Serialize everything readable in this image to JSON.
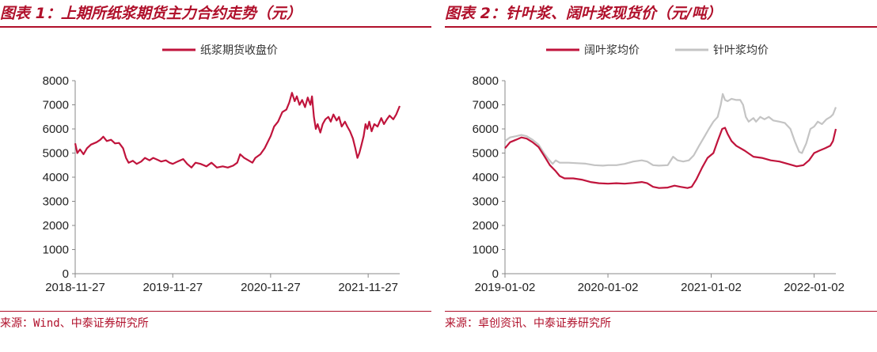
{
  "left": {
    "title": "图表 1：上期所纸浆期货主力合约走势（元）",
    "source": "来源：Wind、中泰证券研究所"
  },
  "right": {
    "title": "图表 2：针叶浆、阔叶浆现货价（元/吨）",
    "source": "来源：卓创资讯、中泰证券研究所"
  },
  "colors": {
    "accent": "#b0102b",
    "red_series": "#c0143c",
    "gray_series": "#c4c4c4"
  },
  "chart_data": [
    {
      "type": "line",
      "title": "",
      "xlabel": "",
      "ylabel": "",
      "ylim": [
        0,
        8000
      ],
      "yticks": [
        "0",
        "1000",
        "2000",
        "3000",
        "4000",
        "5000",
        "6000",
        "7000",
        "8000"
      ],
      "xticks": [
        "2018-11-27",
        "2019-11-27",
        "2020-11-27",
        "2021-11-27"
      ],
      "xrange": [
        "2018-11-27",
        "2022-03-25"
      ],
      "grid": false,
      "legend": "top-center",
      "series": [
        {
          "name": "纸浆期货收盘价",
          "color": "#c0143c",
          "points": [
            [
              "2018-11-27",
              5400
            ],
            [
              "2018-12-05",
              5000
            ],
            [
              "2018-12-15",
              5150
            ],
            [
              "2018-12-28",
              4950
            ],
            [
              "2019-01-10",
              5200
            ],
            [
              "2019-01-25",
              5350
            ],
            [
              "2019-02-15",
              5450
            ],
            [
              "2019-03-01",
              5550
            ],
            [
              "2019-03-12",
              5680
            ],
            [
              "2019-03-25",
              5500
            ],
            [
              "2019-04-10",
              5550
            ],
            [
              "2019-04-25",
              5400
            ],
            [
              "2019-05-10",
              5420
            ],
            [
              "2019-05-25",
              5200
            ],
            [
              "2019-06-05",
              4800
            ],
            [
              "2019-06-15",
              4600
            ],
            [
              "2019-07-01",
              4680
            ],
            [
              "2019-07-15",
              4550
            ],
            [
              "2019-08-01",
              4650
            ],
            [
              "2019-08-15",
              4800
            ],
            [
              "2019-09-01",
              4700
            ],
            [
              "2019-09-15",
              4800
            ],
            [
              "2019-10-01",
              4720
            ],
            [
              "2019-10-15",
              4650
            ],
            [
              "2019-11-01",
              4700
            ],
            [
              "2019-11-15",
              4600
            ],
            [
              "2019-11-27",
              4550
            ],
            [
              "2019-12-15",
              4650
            ],
            [
              "2020-01-05",
              4750
            ],
            [
              "2020-01-20",
              4550
            ],
            [
              "2020-02-05",
              4400
            ],
            [
              "2020-02-20",
              4600
            ],
            [
              "2020-03-10",
              4550
            ],
            [
              "2020-04-01",
              4450
            ],
            [
              "2020-04-20",
              4600
            ],
            [
              "2020-05-10",
              4400
            ],
            [
              "2020-06-01",
              4450
            ],
            [
              "2020-06-20",
              4400
            ],
            [
              "2020-07-10",
              4480
            ],
            [
              "2020-07-25",
              4600
            ],
            [
              "2020-08-05",
              4950
            ],
            [
              "2020-08-20",
              4800
            ],
            [
              "2020-09-05",
              4700
            ],
            [
              "2020-09-20",
              4600
            ],
            [
              "2020-10-01",
              4800
            ],
            [
              "2020-10-20",
              4950
            ],
            [
              "2020-11-05",
              5200
            ],
            [
              "2020-11-27",
              5700
            ],
            [
              "2020-12-10",
              6100
            ],
            [
              "2020-12-25",
              6300
            ],
            [
              "2021-01-10",
              6700
            ],
            [
              "2021-01-25",
              6800
            ],
            [
              "2021-02-05",
              7100
            ],
            [
              "2021-02-15",
              7500
            ],
            [
              "2021-02-25",
              7150
            ],
            [
              "2021-03-05",
              7350
            ],
            [
              "2021-03-15",
              7000
            ],
            [
              "2021-03-25",
              7200
            ],
            [
              "2021-04-05",
              6900
            ],
            [
              "2021-04-15",
              7300
            ],
            [
              "2021-04-25",
              7000
            ],
            [
              "2021-05-01",
              7350
            ],
            [
              "2021-05-08",
              6500
            ],
            [
              "2021-05-15",
              6000
            ],
            [
              "2021-05-22",
              6200
            ],
            [
              "2021-06-01",
              5850
            ],
            [
              "2021-06-10",
              6200
            ],
            [
              "2021-06-20",
              6400
            ],
            [
              "2021-07-01",
              6500
            ],
            [
              "2021-07-10",
              6300
            ],
            [
              "2021-07-20",
              6600
            ],
            [
              "2021-08-01",
              6350
            ],
            [
              "2021-08-10",
              6500
            ],
            [
              "2021-08-20",
              6100
            ],
            [
              "2021-09-01",
              6300
            ],
            [
              "2021-09-10",
              6100
            ],
            [
              "2021-09-20",
              5900
            ],
            [
              "2021-10-01",
              5600
            ],
            [
              "2021-10-10",
              5200
            ],
            [
              "2021-10-18",
              4800
            ],
            [
              "2021-10-25",
              5000
            ],
            [
              "2021-11-01",
              5300
            ],
            [
              "2021-11-10",
              5700
            ],
            [
              "2021-11-17",
              6200
            ],
            [
              "2021-11-24",
              6000
            ],
            [
              "2021-12-01",
              6300
            ],
            [
              "2021-12-10",
              5900
            ],
            [
              "2021-12-20",
              6200
            ],
            [
              "2022-01-01",
              6100
            ],
            [
              "2022-01-15",
              6450
            ],
            [
              "2022-01-25",
              6200
            ],
            [
              "2022-02-05",
              6400
            ],
            [
              "2022-02-15",
              6550
            ],
            [
              "2022-03-01",
              6400
            ],
            [
              "2022-03-12",
              6600
            ],
            [
              "2022-03-25",
              6950
            ]
          ]
        }
      ]
    },
    {
      "type": "line",
      "title": "",
      "xlabel": "",
      "ylabel": "",
      "ylim": [
        0,
        8000
      ],
      "yticks": [
        "0",
        "1000",
        "2000",
        "3000",
        "4000",
        "5000",
        "6000",
        "7000",
        "8000"
      ],
      "xticks": [
        "2019-01-02",
        "2020-01-02",
        "2021-01-02",
        "2022-01-02"
      ],
      "xrange": [
        "2019-01-02",
        "2022-03-20"
      ],
      "grid": false,
      "legend": "top-center",
      "series": [
        {
          "name": "阔叶浆均价",
          "color": "#c0143c",
          "points": [
            [
              "2019-01-02",
              5200
            ],
            [
              "2019-01-20",
              5450
            ],
            [
              "2019-02-10",
              5550
            ],
            [
              "2019-03-01",
              5650
            ],
            [
              "2019-03-20",
              5600
            ],
            [
              "2019-04-10",
              5450
            ],
            [
              "2019-05-01",
              5250
            ],
            [
              "2019-05-20",
              4900
            ],
            [
              "2019-06-10",
              4500
            ],
            [
              "2019-07-01",
              4250
            ],
            [
              "2019-07-15",
              4050
            ],
            [
              "2019-08-01",
              3950
            ],
            [
              "2019-09-01",
              3950
            ],
            [
              "2019-10-01",
              3900
            ],
            [
              "2019-11-01",
              3800
            ],
            [
              "2019-12-01",
              3750
            ],
            [
              "2020-01-02",
              3730
            ],
            [
              "2020-02-01",
              3750
            ],
            [
              "2020-03-01",
              3730
            ],
            [
              "2020-04-01",
              3760
            ],
            [
              "2020-05-01",
              3800
            ],
            [
              "2020-05-20",
              3750
            ],
            [
              "2020-06-10",
              3600
            ],
            [
              "2020-07-01",
              3550
            ],
            [
              "2020-08-01",
              3570
            ],
            [
              "2020-08-25",
              3650
            ],
            [
              "2020-09-15",
              3600
            ],
            [
              "2020-10-10",
              3550
            ],
            [
              "2020-10-25",
              3600
            ],
            [
              "2020-11-10",
              3900
            ],
            [
              "2020-12-01",
              4400
            ],
            [
              "2020-12-20",
              4800
            ],
            [
              "2021-01-10",
              5000
            ],
            [
              "2021-01-25",
              5500
            ],
            [
              "2021-02-10",
              6000
            ],
            [
              "2021-02-20",
              6050
            ],
            [
              "2021-03-01",
              5800
            ],
            [
              "2021-03-15",
              5500
            ],
            [
              "2021-04-01",
              5300
            ],
            [
              "2021-05-01",
              5100
            ],
            [
              "2021-06-01",
              4850
            ],
            [
              "2021-07-01",
              4800
            ],
            [
              "2021-08-01",
              4700
            ],
            [
              "2021-09-01",
              4650
            ],
            [
              "2021-10-01",
              4550
            ],
            [
              "2021-11-01",
              4450
            ],
            [
              "2021-11-25",
              4500
            ],
            [
              "2021-12-15",
              4700
            ],
            [
              "2022-01-02",
              5000
            ],
            [
              "2022-01-20",
              5100
            ],
            [
              "2022-02-10",
              5200
            ],
            [
              "2022-02-28",
              5300
            ],
            [
              "2022-03-10",
              5500
            ],
            [
              "2022-03-20",
              6000
            ]
          ]
        },
        {
          "name": "针叶浆均价",
          "color": "#c4c4c4",
          "points": [
            [
              "2019-01-02",
              5500
            ],
            [
              "2019-01-20",
              5650
            ],
            [
              "2019-02-10",
              5700
            ],
            [
              "2019-03-01",
              5750
            ],
            [
              "2019-03-20",
              5700
            ],
            [
              "2019-04-10",
              5550
            ],
            [
              "2019-05-01",
              5350
            ],
            [
              "2019-05-20",
              5000
            ],
            [
              "2019-06-05",
              4750
            ],
            [
              "2019-06-20",
              4550
            ],
            [
              "2019-07-01",
              4700
            ],
            [
              "2019-07-15",
              4600
            ],
            [
              "2019-08-15",
              4600
            ],
            [
              "2019-09-15",
              4580
            ],
            [
              "2019-10-15",
              4560
            ],
            [
              "2019-11-15",
              4500
            ],
            [
              "2019-12-15",
              4480
            ],
            [
              "2020-01-02",
              4500
            ],
            [
              "2020-02-01",
              4500
            ],
            [
              "2020-03-01",
              4550
            ],
            [
              "2020-04-01",
              4650
            ],
            [
              "2020-05-01",
              4700
            ],
            [
              "2020-05-20",
              4650
            ],
            [
              "2020-06-10",
              4500
            ],
            [
              "2020-07-01",
              4480
            ],
            [
              "2020-08-01",
              4500
            ],
            [
              "2020-08-20",
              4850
            ],
            [
              "2020-09-05",
              4700
            ],
            [
              "2020-09-25",
              4650
            ],
            [
              "2020-10-15",
              4700
            ],
            [
              "2020-11-01",
              4900
            ],
            [
              "2020-11-20",
              5300
            ],
            [
              "2020-12-10",
              5700
            ],
            [
              "2020-12-25",
              6000
            ],
            [
              "2021-01-10",
              6300
            ],
            [
              "2021-01-25",
              6500
            ],
            [
              "2021-02-05",
              7000
            ],
            [
              "2021-02-12",
              7450
            ],
            [
              "2021-02-20",
              7200
            ],
            [
              "2021-03-01",
              7150
            ],
            [
              "2021-03-15",
              7250
            ],
            [
              "2021-04-01",
              7200
            ],
            [
              "2021-04-15",
              7200
            ],
            [
              "2021-04-25",
              7000
            ],
            [
              "2021-05-05",
              6500
            ],
            [
              "2021-05-15",
              6300
            ],
            [
              "2021-06-01",
              6450
            ],
            [
              "2021-06-10",
              6300
            ],
            [
              "2021-06-25",
              6500
            ],
            [
              "2021-07-10",
              6400
            ],
            [
              "2021-07-25",
              6500
            ],
            [
              "2021-08-10",
              6350
            ],
            [
              "2021-09-01",
              6300
            ],
            [
              "2021-09-20",
              6250
            ],
            [
              "2021-10-10",
              6000
            ],
            [
              "2021-10-25",
              5500
            ],
            [
              "2021-11-10",
              5050
            ],
            [
              "2021-11-20",
              5000
            ],
            [
              "2021-12-05",
              5400
            ],
            [
              "2021-12-20",
              6000
            ],
            [
              "2022-01-02",
              6100
            ],
            [
              "2022-01-15",
              6300
            ],
            [
              "2022-01-30",
              6200
            ],
            [
              "2022-02-15",
              6400
            ],
            [
              "2022-03-01",
              6500
            ],
            [
              "2022-03-10",
              6600
            ],
            [
              "2022-03-20",
              6900
            ]
          ]
        }
      ]
    }
  ]
}
